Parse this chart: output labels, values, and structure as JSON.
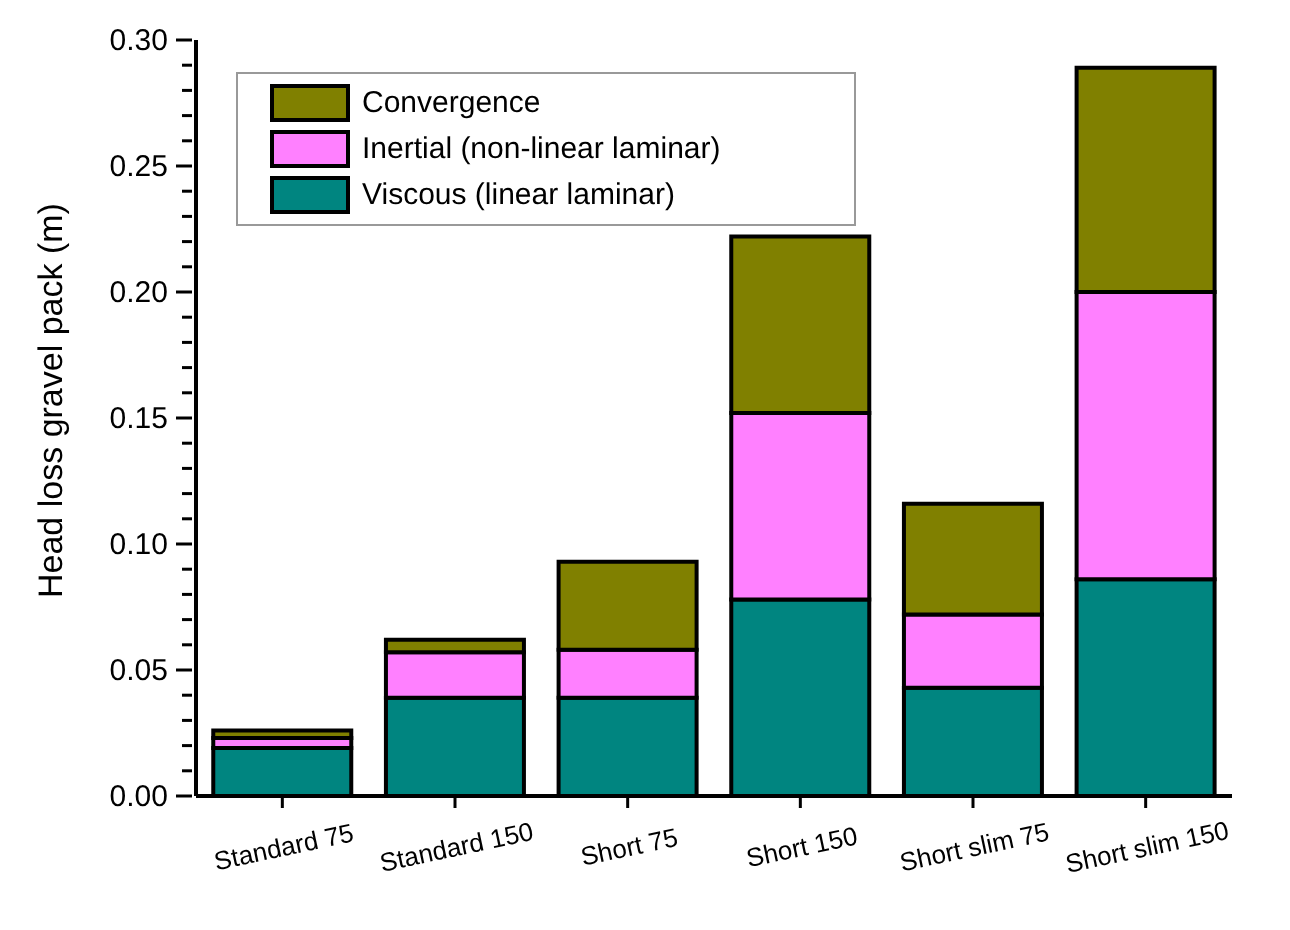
{
  "chart_data": {
    "type": "bar",
    "stacked": true,
    "ylabel": "Head loss gravel pack (m)",
    "categories": [
      "Standard 75",
      "Standard 150",
      "Short 75",
      "Short 150",
      "Short slim 75",
      "Short slim 150"
    ],
    "series": [
      {
        "name": "Viscous (linear laminar)",
        "color": "#008580",
        "values": [
          0.019,
          0.039,
          0.039,
          0.078,
          0.043,
          0.086
        ]
      },
      {
        "name": "Inertial (non-linear laminar)",
        "color": "#ff80ff",
        "values": [
          0.004,
          0.018,
          0.019,
          0.074,
          0.029,
          0.114
        ]
      },
      {
        "name": "Convergence",
        "color": "#808000",
        "values": [
          0.003,
          0.005,
          0.035,
          0.07,
          0.044,
          0.089
        ]
      }
    ],
    "ylim": [
      0,
      0.3
    ],
    "yticks": [
      {
        "value": 0,
        "label": "0.00"
      },
      {
        "value": 0.01,
        "label": null
      },
      {
        "value": 0.02,
        "label": null
      },
      {
        "value": 0.03,
        "label": null
      },
      {
        "value": 0.04,
        "label": null
      },
      {
        "value": 0.05,
        "label": "0.05"
      },
      {
        "value": 0.06,
        "label": null
      },
      {
        "value": 0.07,
        "label": null
      },
      {
        "value": 0.08,
        "label": null
      },
      {
        "value": 0.09,
        "label": null
      },
      {
        "value": 0.1,
        "label": "0.10"
      },
      {
        "value": 0.11,
        "label": null
      },
      {
        "value": 0.12,
        "label": null
      },
      {
        "value": 0.13,
        "label": null
      },
      {
        "value": 0.14,
        "label": null
      },
      {
        "value": 0.15,
        "label": "0.15"
      },
      {
        "value": 0.16,
        "label": null
      },
      {
        "value": 0.17,
        "label": null
      },
      {
        "value": 0.18,
        "label": null
      },
      {
        "value": 0.19,
        "label": null
      },
      {
        "value": 0.2,
        "label": "0.20"
      },
      {
        "value": 0.21,
        "label": null
      },
      {
        "value": 0.22,
        "label": null
      },
      {
        "value": 0.23,
        "label": null
      },
      {
        "value": 0.24,
        "label": null
      },
      {
        "value": 0.25,
        "label": "0.25"
      },
      {
        "value": 0.26,
        "label": null
      },
      {
        "value": 0.27,
        "label": null
      },
      {
        "value": 0.28,
        "label": null
      },
      {
        "value": 0.29,
        "label": null
      },
      {
        "value": 0.3,
        "label": "0.30"
      }
    ],
    "grid": false,
    "legend": "top left"
  }
}
